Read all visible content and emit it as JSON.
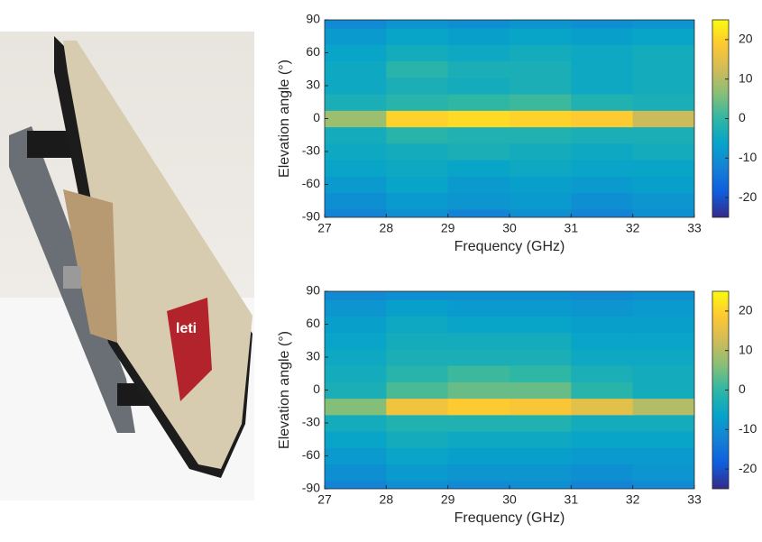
{
  "chart_data": [
    {
      "type": "heatmap",
      "xlabel": "Frequency (GHz)",
      "ylabel": "Elevation angle (°)",
      "x": [
        27.5,
        28.5,
        29.5,
        30.5,
        31.5,
        32.5
      ],
      "y": [
        -90,
        -75,
        -60,
        -45,
        -30,
        -15,
        0,
        15,
        30,
        45,
        60,
        75,
        90
      ],
      "values": [
        [
          -12,
          -10,
          -12,
          -10,
          -12,
          -10
        ],
        [
          -10,
          -8,
          -9,
          -8,
          -10,
          -9
        ],
        [
          -8,
          -6,
          -8,
          -7,
          -8,
          -7
        ],
        [
          -6,
          -5,
          -6,
          -5,
          -6,
          -6
        ],
        [
          -5,
          -4,
          -3,
          -4,
          -5,
          -4
        ],
        [
          -4,
          -1,
          -2,
          -2,
          -3,
          -3
        ],
        [
          8,
          20,
          21,
          20,
          19,
          12
        ],
        [
          -3,
          -1,
          0,
          1,
          -2,
          -3
        ],
        [
          -5,
          -3,
          -4,
          -3,
          -5,
          -4
        ],
        [
          -5,
          -1,
          -3,
          -3,
          -5,
          -4
        ],
        [
          -6,
          -4,
          -5,
          -4,
          -5,
          -4
        ],
        [
          -8,
          -6,
          -7,
          -6,
          -7,
          -6
        ],
        [
          -11,
          -9,
          -10,
          -9,
          -10,
          -9
        ]
      ],
      "xlim": [
        27,
        33
      ],
      "xticks": [
        27,
        28,
        29,
        30,
        31,
        32,
        33
      ],
      "ylim": [
        -90,
        90
      ],
      "yticks": [
        -90,
        -60,
        -30,
        0,
        30,
        60,
        90
      ],
      "clim": [
        -25,
        25
      ],
      "cticks": [
        -20,
        -10,
        0,
        10,
        20
      ],
      "colormap": [
        "#352a87",
        "#0f5cdd",
        "#1481d6",
        "#06a4ca",
        "#2eb7a4",
        "#87bf77",
        "#d1bb59",
        "#fec832",
        "#f9fb0e"
      ]
    },
    {
      "type": "heatmap",
      "xlabel": "Frequency (GHz)",
      "ylabel": "Elevation angle (°)",
      "x": [
        27.5,
        28.5,
        29.5,
        30.5,
        31.5,
        32.5
      ],
      "y": [
        -90,
        -75,
        -60,
        -45,
        -30,
        -15,
        0,
        15,
        30,
        45,
        60,
        75,
        90
      ],
      "values": [
        [
          -12,
          -10,
          -11,
          -10,
          -12,
          -11
        ],
        [
          -10,
          -8,
          -9,
          -9,
          -10,
          -9
        ],
        [
          -8,
          -6,
          -7,
          -7,
          -8,
          -8
        ],
        [
          -6,
          -4,
          -5,
          -5,
          -6,
          -6
        ],
        [
          -4,
          -2,
          -2,
          -2,
          -4,
          -4
        ],
        [
          6,
          17,
          19,
          18,
          15,
          10
        ],
        [
          -3,
          2,
          4,
          4,
          -1,
          -4
        ],
        [
          -4,
          -1,
          1,
          0,
          -3,
          -4
        ],
        [
          -5,
          -3,
          -3,
          -3,
          -5,
          -5
        ],
        [
          -6,
          -4,
          -4,
          -4,
          -6,
          -6
        ],
        [
          -7,
          -5,
          -6,
          -6,
          -7,
          -7
        ],
        [
          -9,
          -7,
          -8,
          -8,
          -9,
          -8
        ],
        [
          -11,
          -10,
          -10,
          -10,
          -11,
          -10
        ]
      ],
      "xlim": [
        27,
        33
      ],
      "xticks": [
        27,
        28,
        29,
        30,
        31,
        32,
        33
      ],
      "ylim": [
        -90,
        90
      ],
      "yticks": [
        -90,
        -60,
        -30,
        0,
        30,
        60,
        90
      ],
      "clim": [
        -25,
        25
      ],
      "cticks": [
        -20,
        -10,
        0,
        10,
        20
      ],
      "colormap": [
        "#352a87",
        "#0f5cdd",
        "#1481d6",
        "#06a4ca",
        "#2eb7a4",
        "#87bf77",
        "#d1bb59",
        "#fec832",
        "#f9fb0e"
      ]
    }
  ]
}
